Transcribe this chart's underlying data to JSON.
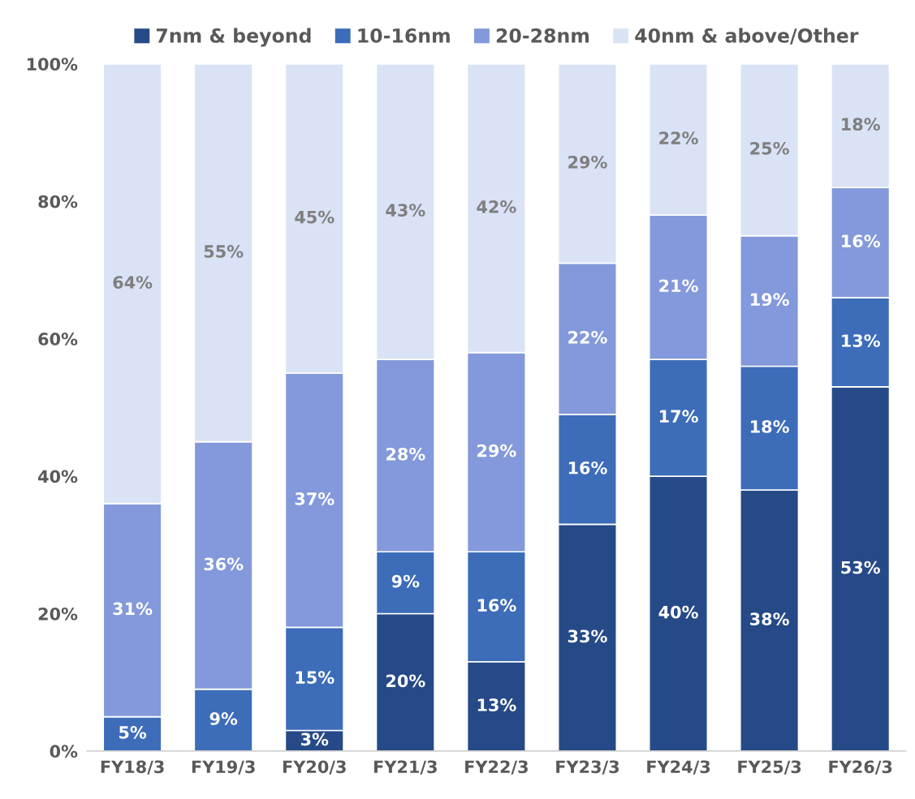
{
  "chart_data": {
    "type": "bar",
    "stacked": true,
    "categories": [
      "FY18/3",
      "FY19/3",
      "FY20/3",
      "FY21/3",
      "FY22/3",
      "FY23/3",
      "FY24/3",
      "FY25/3",
      "FY26/3"
    ],
    "series": [
      {
        "name": "7nm & beyond",
        "color": "#264a87",
        "values": [
          0,
          0,
          3,
          20,
          13,
          33,
          40,
          38,
          53
        ],
        "value_labels": [
          null,
          null,
          "3%",
          "20%",
          "13%",
          "33%",
          "40%",
          "38%",
          "53%"
        ]
      },
      {
        "name": "10-16nm",
        "color": "#3d6cb9",
        "values": [
          5,
          9,
          15,
          9,
          16,
          16,
          17,
          18,
          13
        ],
        "value_labels": [
          "5%",
          "9%",
          "15%",
          "9%",
          "16%",
          "16%",
          "17%",
          "18%",
          "13%"
        ]
      },
      {
        "name": "20-28nm",
        "color": "#8399db",
        "values": [
          31,
          36,
          37,
          28,
          29,
          22,
          21,
          19,
          16
        ],
        "value_labels": [
          "31%",
          "36%",
          "37%",
          "28%",
          "29%",
          "22%",
          "21%",
          "19%",
          "16%"
        ]
      },
      {
        "name": "40nm & above/Other",
        "color": "#dae2f6",
        "values": [
          64,
          55,
          45,
          43,
          42,
          29,
          22,
          25,
          18
        ],
        "value_labels": [
          "64%",
          "55%",
          "45%",
          "43%",
          "42%",
          "29%",
          "22%",
          "25%",
          "18%"
        ]
      }
    ],
    "ylim": [
      0,
      100
    ],
    "yticks": [
      {
        "value": 0,
        "label": "0%"
      },
      {
        "value": 20,
        "label": "20%"
      },
      {
        "value": 40,
        "label": "40%"
      },
      {
        "value": 60,
        "label": "60%"
      },
      {
        "value": 80,
        "label": "80%"
      },
      {
        "value": 100,
        "label": "100%"
      }
    ],
    "grid": false,
    "legend": "top"
  }
}
